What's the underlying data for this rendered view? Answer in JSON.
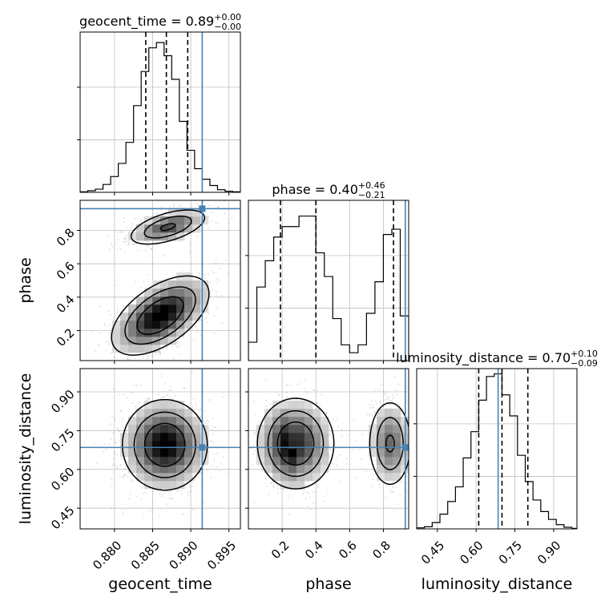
{
  "chart_data": {
    "type": "corner",
    "parameters": [
      "geocent_time",
      "phase",
      "luminosity_distance"
    ],
    "truths": {
      "geocent_time": 0.8915,
      "phase": 0.93,
      "luminosity_distance": 0.685
    },
    "quantiles": {
      "geocent_time": [
        0.8841,
        0.8868,
        0.8896
      ],
      "phase": [
        0.19,
        0.4,
        0.86
      ],
      "luminosity_distance": [
        0.61,
        0.7,
        0.8
      ]
    },
    "panels": [
      {
        "id": "geocent-time-hist",
        "type": "histogram",
        "title_param": "geocent_time",
        "title_value": "0.89",
        "title_plus": "+0.00",
        "title_minus": "−0.00",
        "xlim": [
          0.8755,
          0.8965
        ],
        "ylim": [
          0,
          3.05
        ],
        "bin_edges": [
          0.8755,
          0.8765,
          0.8775,
          0.8785,
          0.8795,
          0.8805,
          0.8815,
          0.8825,
          0.8835,
          0.8845,
          0.8855,
          0.8865,
          0.8875,
          0.8885,
          0.8895,
          0.8905,
          0.8915,
          0.8925,
          0.8935,
          0.8945,
          0.8955,
          0.8965
        ],
        "counts": [
          0.01,
          0.03,
          0.06,
          0.15,
          0.3,
          0.55,
          0.95,
          1.65,
          2.3,
          2.75,
          2.85,
          2.6,
          2.15,
          1.35,
          0.8,
          0.45,
          0.25,
          0.13,
          0.05,
          0.02,
          0.01
        ],
        "y_ticks": [
          1,
          2
        ]
      },
      {
        "id": "phase-hist",
        "type": "histogram",
        "title_param": "phase",
        "title_value": "0.40",
        "title_plus": "+0.46",
        "title_minus": "−0.21",
        "xlim": [
          0.0,
          0.95
        ],
        "ylim": [
          0,
          3.05
        ],
        "bin_edges": [
          0.0,
          0.05,
          0.1,
          0.15,
          0.2,
          0.25,
          0.3,
          0.35,
          0.4,
          0.45,
          0.5,
          0.55,
          0.6,
          0.65,
          0.7,
          0.75,
          0.8,
          0.85,
          0.9,
          0.95
        ],
        "counts": [
          0.35,
          1.4,
          1.9,
          2.35,
          2.55,
          2.55,
          2.75,
          2.75,
          2.05,
          1.6,
          0.8,
          0.3,
          0.15,
          0.3,
          0.9,
          1.5,
          2.4,
          2.5,
          0.85
        ],
        "y_ticks": [
          1,
          2
        ]
      },
      {
        "id": "luminosity-distance-hist",
        "type": "histogram",
        "title_param": "luminosity_distance",
        "title_value": "0.70",
        "title_plus": "+0.10",
        "title_minus": "−0.09",
        "xlim": [
          0.37,
          0.99
        ],
        "ylim": [
          0,
          3.05
        ],
        "bin_edges": [
          0.37,
          0.4,
          0.43,
          0.46,
          0.49,
          0.52,
          0.55,
          0.58,
          0.61,
          0.64,
          0.67,
          0.7,
          0.73,
          0.76,
          0.79,
          0.82,
          0.85,
          0.88,
          0.91,
          0.94,
          0.97,
          0.99
        ],
        "counts": [
          0.02,
          0.04,
          0.12,
          0.28,
          0.52,
          0.8,
          1.35,
          1.85,
          2.45,
          2.9,
          2.95,
          2.55,
          2.15,
          1.4,
          0.9,
          0.55,
          0.33,
          0.18,
          0.08,
          0.03,
          0.01
        ],
        "y_ticks": [
          1,
          2
        ]
      },
      {
        "id": "phase-vs-geocent-time",
        "type": "density2d",
        "x": "geocent_time",
        "y": "phase",
        "xlim": [
          0.8755,
          0.8965
        ],
        "ylim": [
          0.02,
          0.98
        ],
        "blobs": [
          {
            "cx": 0.886,
            "cy": 0.29,
            "sx": 0.0031,
            "sy": 0.115,
            "rho": 0.55,
            "w": 0.6
          },
          {
            "cx": 0.887,
            "cy": 0.82,
            "sx": 0.0026,
            "sy": 0.055,
            "rho": 0.55,
            "w": 0.4
          }
        ]
      },
      {
        "id": "luminosity-distance-vs-geocent-time",
        "type": "density2d",
        "x": "geocent_time",
        "y": "luminosity_distance",
        "xlim": [
          0.8755,
          0.8965
        ],
        "ylim": [
          0.37,
          0.99
        ],
        "blobs": [
          {
            "cx": 0.8866,
            "cy": 0.695,
            "sx": 0.0027,
            "sy": 0.085,
            "rho": 0.0,
            "w": 1.0
          }
        ]
      },
      {
        "id": "luminosity-distance-vs-phase",
        "type": "density2d",
        "x": "phase",
        "y": "luminosity_distance",
        "xlim": [
          0.0,
          0.95
        ],
        "ylim": [
          0.37,
          0.99
        ],
        "blobs": [
          {
            "cx": 0.28,
            "cy": 0.7,
            "sx": 0.11,
            "sy": 0.085,
            "rho": 0.0,
            "w": 0.6
          },
          {
            "cx": 0.84,
            "cy": 0.7,
            "sx": 0.065,
            "sy": 0.085,
            "rho": 0.0,
            "w": 0.4
          }
        ]
      }
    ],
    "axes": {
      "geocent_time": {
        "xlabel": "geocent_time",
        "ticks": [
          "0.880",
          "0.885",
          "0.890",
          "0.895"
        ],
        "tick_values": [
          0.88,
          0.885,
          0.89,
          0.895
        ]
      },
      "phase": {
        "xlabel": "phase",
        "ylabel": "phase",
        "ticks": [
          "0.2",
          "0.4",
          "0.6",
          "0.8"
        ],
        "tick_values": [
          0.2,
          0.4,
          0.6,
          0.8
        ]
      },
      "luminosity_distance": {
        "xlabel": "luminosity_distance",
        "ylabel": "luminosity_distance",
        "ticks": [
          "0.45",
          "0.60",
          "0.75",
          "0.90"
        ],
        "tick_values": [
          0.45,
          0.6,
          0.75,
          0.9
        ]
      }
    },
    "grid": true,
    "colors": {
      "truth": "#4682b4",
      "hist": "#000000",
      "density": "#000000",
      "grid": "#c0c0c0"
    }
  }
}
